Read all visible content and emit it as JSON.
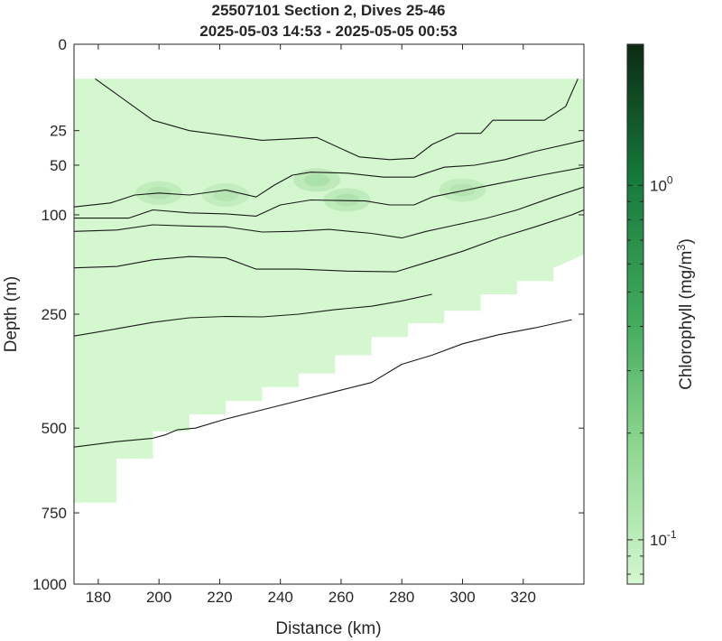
{
  "chart_data": {
    "type": "contour",
    "title": "25507101 Section 2, Dives 25-46",
    "subtitle": "2025-05-03 14:53 - 2025-05-05 00:53",
    "xlabel": "Distance (km)",
    "ylabel": "Depth (m)",
    "xlim": [
      172,
      340
    ],
    "ylim": [
      0,
      1000
    ],
    "y_axis_reversed": true,
    "x_ticks": [
      "180",
      "200",
      "220",
      "240",
      "260",
      "280",
      "300",
      "320"
    ],
    "y_ticks": [
      {
        "depth": 0,
        "label": "0"
      },
      {
        "depth": 25,
        "label": "25"
      },
      {
        "depth": 50,
        "label": "50"
      },
      {
        "depth": 100,
        "label": "100"
      },
      {
        "depth": 250,
        "label": "250"
      },
      {
        "depth": 500,
        "label": "500"
      },
      {
        "depth": 750,
        "label": "750"
      },
      {
        "depth": 1000,
        "label": "1000"
      }
    ],
    "y_depth_scale": [
      [
        0,
        0
      ],
      [
        25,
        0.16
      ],
      [
        50,
        0.224
      ],
      [
        100,
        0.316
      ],
      [
        250,
        0.5
      ],
      [
        500,
        0.711
      ],
      [
        750,
        0.868
      ],
      [
        1000,
        1.0
      ]
    ],
    "colorbar": {
      "label": "Chlorophyll (mg/m^3)",
      "scale": "log",
      "range": [
        0.075,
        2.5
      ],
      "ticks": [
        {
          "value": 0.1,
          "label": "10",
          "sup": "-1"
        },
        {
          "value": 1,
          "label": "10",
          "sup": "0"
        }
      ],
      "color_low": "#d4f7cf",
      "color_high": "#0c2b13"
    },
    "background_value_mg_m3": 0.08,
    "data_extent": {
      "top_depth_m": 10,
      "bottom": [
        [
          172,
          720
        ],
        [
          186,
          720
        ],
        [
          186,
          590
        ],
        [
          198,
          590
        ],
        [
          198,
          510
        ],
        [
          210,
          510
        ],
        [
          210,
          470
        ],
        [
          222,
          470
        ],
        [
          222,
          440
        ],
        [
          234,
          440
        ],
        [
          234,
          410
        ],
        [
          246,
          410
        ],
        [
          246,
          380
        ],
        [
          258,
          380
        ],
        [
          258,
          340
        ],
        [
          270,
          340
        ],
        [
          270,
          300
        ],
        [
          282,
          300
        ],
        [
          282,
          270
        ],
        [
          294,
          270
        ],
        [
          294,
          245
        ],
        [
          306,
          245
        ],
        [
          306,
          220
        ],
        [
          318,
          220
        ],
        [
          318,
          200
        ],
        [
          330,
          200
        ],
        [
          330,
          180
        ],
        [
          340,
          160
        ]
      ]
    },
    "chlorophyll_maximum": [
      {
        "x": 200,
        "depth": 78,
        "value": 0.14
      },
      {
        "x": 222,
        "depth": 80,
        "value": 0.13
      },
      {
        "x": 252,
        "depth": 65,
        "value": 0.18
      },
      {
        "x": 262,
        "depth": 85,
        "value": 0.17
      },
      {
        "x": 300,
        "depth": 75,
        "value": 0.14
      }
    ],
    "contours": [
      {
        "points": [
          [
            179,
            10
          ],
          [
            198,
            22
          ],
          [
            210,
            25
          ],
          [
            234,
            32
          ],
          [
            252,
            30
          ],
          [
            266,
            44
          ],
          [
            276,
            46
          ],
          [
            284,
            45
          ],
          [
            290,
            35
          ],
          [
            298,
            27
          ],
          [
            306,
            27
          ],
          [
            310,
            22
          ],
          [
            318,
            22
          ],
          [
            327,
            22
          ],
          [
            334,
            18
          ],
          [
            338,
            10
          ]
        ]
      },
      {
        "points": [
          [
            172,
            92
          ],
          [
            184,
            88
          ],
          [
            192,
            80
          ],
          [
            200,
            78
          ],
          [
            210,
            80
          ],
          [
            222,
            75
          ],
          [
            232,
            82
          ],
          [
            238,
            70
          ],
          [
            244,
            60
          ],
          [
            250,
            57
          ],
          [
            262,
            58
          ],
          [
            274,
            62
          ],
          [
            284,
            62
          ],
          [
            294,
            52
          ],
          [
            304,
            50
          ],
          [
            314,
            46
          ],
          [
            324,
            40
          ],
          [
            340,
            32
          ]
        ]
      },
      {
        "points": [
          [
            172,
            105
          ],
          [
            190,
            105
          ],
          [
            198,
            95
          ],
          [
            210,
            98
          ],
          [
            222,
            99
          ],
          [
            232,
            102
          ],
          [
            240,
            90
          ],
          [
            250,
            85
          ],
          [
            268,
            86
          ],
          [
            276,
            90
          ],
          [
            284,
            90
          ],
          [
            290,
            82
          ],
          [
            298,
            77
          ],
          [
            306,
            72
          ],
          [
            316,
            66
          ],
          [
            326,
            60
          ],
          [
            340,
            52
          ]
        ]
      },
      {
        "points": [
          [
            172,
            125
          ],
          [
            186,
            123
          ],
          [
            198,
            115
          ],
          [
            210,
            117
          ],
          [
            222,
            118
          ],
          [
            234,
            126
          ],
          [
            244,
            125
          ],
          [
            256,
            122
          ],
          [
            270,
            128
          ],
          [
            280,
            135
          ],
          [
            288,
            125
          ],
          [
            298,
            115
          ],
          [
            308,
            105
          ],
          [
            318,
            95
          ],
          [
            330,
            82
          ],
          [
            340,
            72
          ]
        ]
      },
      {
        "points": [
          [
            172,
            180
          ],
          [
            186,
            178
          ],
          [
            198,
            168
          ],
          [
            210,
            163
          ],
          [
            222,
            165
          ],
          [
            232,
            182
          ],
          [
            246,
            182
          ],
          [
            262,
            185
          ],
          [
            278,
            186
          ],
          [
            288,
            172
          ],
          [
            300,
            155
          ],
          [
            312,
            135
          ],
          [
            324,
            118
          ],
          [
            336,
            100
          ],
          [
            340,
            95
          ]
        ]
      },
      {
        "points": [
          [
            172,
            298
          ],
          [
            186,
            282
          ],
          [
            198,
            268
          ],
          [
            210,
            258
          ],
          [
            222,
            255
          ],
          [
            234,
            256
          ],
          [
            246,
            250
          ],
          [
            258,
            243
          ],
          [
            270,
            238
          ],
          [
            280,
            230
          ],
          [
            290,
            220
          ]
        ]
      },
      {
        "points": [
          [
            172,
            556
          ],
          [
            186,
            540
          ],
          [
            198,
            530
          ],
          [
            202,
            520
          ],
          [
            206,
            505
          ],
          [
            212,
            500
          ],
          [
            222,
            480
          ],
          [
            234,
            460
          ],
          [
            246,
            440
          ],
          [
            258,
            420
          ],
          [
            270,
            400
          ],
          [
            280,
            360
          ],
          [
            290,
            340
          ],
          [
            300,
            315
          ],
          [
            312,
            295
          ],
          [
            324,
            280
          ],
          [
            336,
            262
          ]
        ]
      }
    ]
  }
}
